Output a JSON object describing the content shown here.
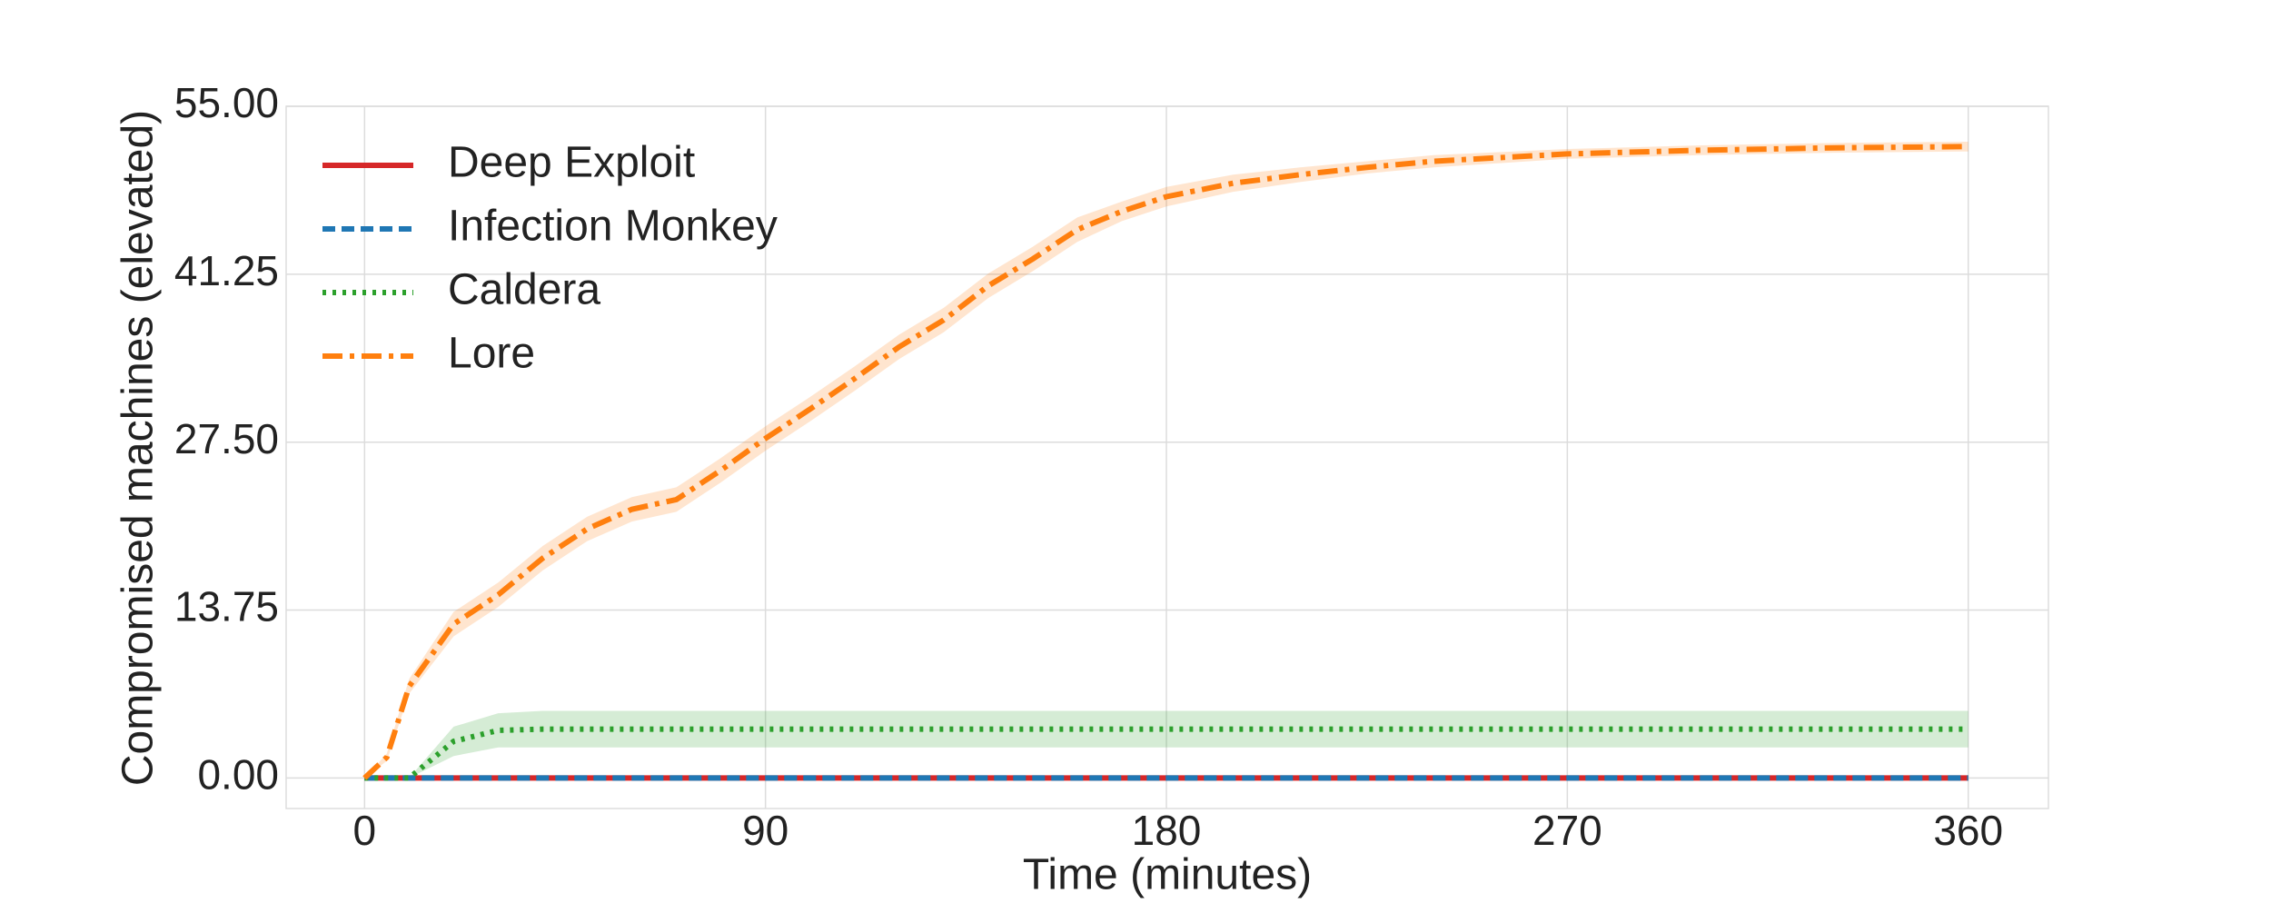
{
  "chart_data": {
    "type": "line",
    "x_label": "Time (minutes)",
    "y_label": "Compromised machines (elevated)",
    "x": [
      0,
      5,
      10,
      20,
      30,
      40,
      50,
      60,
      70,
      80,
      90,
      100,
      110,
      120,
      130,
      140,
      150,
      160,
      170,
      180,
      195,
      210,
      225,
      240,
      270,
      300,
      330,
      360
    ],
    "series": [
      {
        "name": "Deep Exploit",
        "color": "#d62728",
        "linestyle": "solid",
        "values": [
          0,
          0,
          0,
          0,
          0,
          0,
          0,
          0,
          0,
          0,
          0,
          0,
          0,
          0,
          0,
          0,
          0,
          0,
          0,
          0,
          0,
          0,
          0,
          0,
          0,
          0,
          0,
          0
        ],
        "error": [
          0,
          0,
          0,
          0,
          0,
          0,
          0,
          0,
          0,
          0,
          0,
          0,
          0,
          0,
          0,
          0,
          0,
          0,
          0,
          0,
          0,
          0,
          0,
          0,
          0,
          0,
          0,
          0
        ]
      },
      {
        "name": "Infection Monkey",
        "color": "#1f77b4",
        "linestyle": "dashed",
        "values": [
          0,
          0,
          0,
          0,
          0,
          0,
          0,
          0,
          0,
          0,
          0,
          0,
          0,
          0,
          0,
          0,
          0,
          0,
          0,
          0,
          0,
          0,
          0,
          0,
          0,
          0,
          0,
          0
        ],
        "error": [
          0,
          0,
          0,
          0,
          0,
          0,
          0,
          0,
          0,
          0,
          0,
          0,
          0,
          0,
          0,
          0,
          0,
          0,
          0,
          0,
          0,
          0,
          0,
          0,
          0,
          0,
          0,
          0
        ]
      },
      {
        "name": "Caldera",
        "color": "#2ca02c",
        "linestyle": "dotted",
        "values": [
          0,
          0,
          0,
          3,
          3.9,
          4,
          4,
          4,
          4,
          4,
          4,
          4,
          4,
          4,
          4,
          4,
          4,
          4,
          4,
          4,
          4,
          4,
          4,
          4,
          4,
          4,
          4,
          4
        ],
        "error": [
          0,
          0,
          0,
          1.2,
          1.4,
          1.5,
          1.5,
          1.5,
          1.5,
          1.5,
          1.5,
          1.5,
          1.5,
          1.5,
          1.5,
          1.5,
          1.5,
          1.5,
          1.5,
          1.5,
          1.5,
          1.5,
          1.5,
          1.5,
          1.5,
          1.5,
          1.5,
          1.5
        ]
      },
      {
        "name": "Lore",
        "color": "#ff7f0e",
        "linestyle": "dashdot",
        "values": [
          0,
          1.7,
          7.5,
          12.6,
          15,
          18,
          20.4,
          22,
          22.8,
          25.2,
          27.8,
          30.2,
          32.7,
          35.3,
          37.5,
          40.3,
          42.5,
          44.9,
          46.4,
          47.6,
          48.7,
          49.4,
          50,
          50.5,
          51.1,
          51.4,
          51.6,
          51.7
        ],
        "error": [
          0,
          0.3,
          0.6,
          1,
          1,
          1,
          1,
          1,
          1,
          1,
          1,
          1,
          1,
          1,
          1,
          1,
          1,
          1,
          0.8,
          0.8,
          0.7,
          0.6,
          0.5,
          0.5,
          0.4,
          0.4,
          0.4,
          0.4
        ]
      }
    ],
    "xlim": [
      -17.6,
      378
    ],
    "ylim": [
      -2.5,
      55
    ],
    "xticks": [
      0,
      90,
      180,
      270,
      360
    ],
    "yticks": [
      {
        "value": 0,
        "label": "0.00"
      },
      {
        "value": 13.75,
        "label": "13.75"
      },
      {
        "value": 27.5,
        "label": "27.50"
      },
      {
        "value": 41.25,
        "label": "41.25"
      },
      {
        "value": 55,
        "label": "55.00"
      }
    ],
    "grid": true,
    "legend": "upper-left"
  }
}
